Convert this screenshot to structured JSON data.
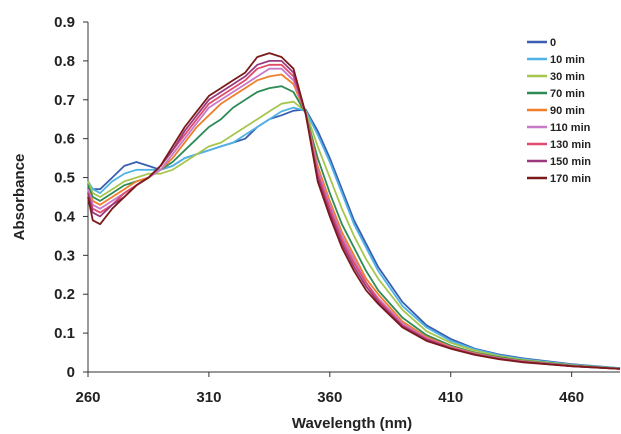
{
  "chart_data": {
    "type": "line",
    "title": "",
    "xlabel": "Wavelength (nm)",
    "ylabel": "Absorbance",
    "xlim": [
      260,
      480
    ],
    "ylim": [
      0,
      0.9
    ],
    "xticks": [
      260,
      310,
      360,
      410,
      460
    ],
    "yticks": [
      0,
      0.1,
      0.2,
      0.3,
      0.4,
      0.5,
      0.6,
      0.7,
      0.8,
      0.9
    ],
    "ytick_labels": [
      "0",
      "0.1",
      "0.2",
      "0.3",
      "0.4",
      "0.5",
      "0.6",
      "0.7",
      "0.8",
      "0.9"
    ],
    "grid": false,
    "legend_position": "top-right",
    "x": [
      260,
      262,
      265,
      270,
      275,
      280,
      285,
      290,
      295,
      300,
      305,
      310,
      315,
      320,
      325,
      330,
      335,
      340,
      345,
      350,
      355,
      360,
      365,
      370,
      375,
      380,
      390,
      400,
      410,
      420,
      430,
      440,
      460,
      480
    ],
    "series": [
      {
        "name": "0",
        "color": "#3a5fb0",
        "values": [
          0.49,
          0.47,
          0.47,
          0.5,
          0.53,
          0.54,
          0.53,
          0.52,
          0.53,
          0.55,
          0.56,
          0.57,
          0.58,
          0.59,
          0.6,
          0.63,
          0.65,
          0.66,
          0.672,
          0.675,
          0.62,
          0.55,
          0.47,
          0.39,
          0.33,
          0.27,
          0.18,
          0.12,
          0.085,
          0.06,
          0.045,
          0.035,
          0.02,
          0.01
        ]
      },
      {
        "name": "10 min",
        "color": "#4fb3e6",
        "values": [
          0.49,
          0.47,
          0.46,
          0.49,
          0.51,
          0.52,
          0.52,
          0.52,
          0.53,
          0.55,
          0.56,
          0.57,
          0.58,
          0.59,
          0.61,
          0.63,
          0.65,
          0.67,
          0.68,
          0.672,
          0.61,
          0.54,
          0.46,
          0.38,
          0.32,
          0.26,
          0.17,
          0.115,
          0.08,
          0.058,
          0.043,
          0.033,
          0.019,
          0.01
        ]
      },
      {
        "name": "30 min",
        "color": "#a6c64e",
        "values": [
          0.49,
          0.46,
          0.45,
          0.47,
          0.49,
          0.5,
          0.51,
          0.51,
          0.52,
          0.54,
          0.56,
          0.58,
          0.59,
          0.61,
          0.63,
          0.65,
          0.67,
          0.69,
          0.695,
          0.67,
          0.58,
          0.5,
          0.42,
          0.35,
          0.29,
          0.24,
          0.16,
          0.105,
          0.075,
          0.055,
          0.041,
          0.031,
          0.018,
          0.009
        ]
      },
      {
        "name": "70 min",
        "color": "#2e8b57",
        "values": [
          0.48,
          0.45,
          0.44,
          0.46,
          0.48,
          0.49,
          0.5,
          0.52,
          0.54,
          0.57,
          0.6,
          0.63,
          0.65,
          0.68,
          0.7,
          0.72,
          0.73,
          0.735,
          0.72,
          0.665,
          0.55,
          0.46,
          0.38,
          0.32,
          0.26,
          0.21,
          0.14,
          0.095,
          0.068,
          0.05,
          0.038,
          0.029,
          0.017,
          0.009
        ]
      },
      {
        "name": "90 min",
        "color": "#f07f2a",
        "values": [
          0.47,
          0.44,
          0.43,
          0.45,
          0.47,
          0.49,
          0.5,
          0.52,
          0.55,
          0.59,
          0.63,
          0.66,
          0.69,
          0.71,
          0.73,
          0.75,
          0.76,
          0.765,
          0.74,
          0.665,
          0.53,
          0.44,
          0.36,
          0.3,
          0.24,
          0.2,
          0.13,
          0.09,
          0.065,
          0.048,
          0.036,
          0.028,
          0.016,
          0.008
        ]
      },
      {
        "name": "110 min",
        "color": "#c879c8",
        "values": [
          0.47,
          0.43,
          0.42,
          0.44,
          0.46,
          0.48,
          0.5,
          0.52,
          0.56,
          0.6,
          0.64,
          0.68,
          0.7,
          0.72,
          0.74,
          0.76,
          0.78,
          0.78,
          0.75,
          0.665,
          0.52,
          0.43,
          0.35,
          0.29,
          0.23,
          0.19,
          0.125,
          0.087,
          0.063,
          0.047,
          0.035,
          0.027,
          0.016,
          0.008
        ]
      },
      {
        "name": "130 min",
        "color": "#e04a6e",
        "values": [
          0.46,
          0.42,
          0.41,
          0.43,
          0.46,
          0.48,
          0.5,
          0.53,
          0.57,
          0.61,
          0.65,
          0.69,
          0.71,
          0.73,
          0.75,
          0.78,
          0.79,
          0.79,
          0.76,
          0.665,
          0.51,
          0.42,
          0.34,
          0.28,
          0.23,
          0.185,
          0.12,
          0.085,
          0.062,
          0.046,
          0.034,
          0.026,
          0.015,
          0.008
        ]
      },
      {
        "name": "150 min",
        "color": "#9a3a7e",
        "values": [
          0.46,
          0.41,
          0.4,
          0.43,
          0.45,
          0.48,
          0.5,
          0.53,
          0.57,
          0.62,
          0.66,
          0.7,
          0.72,
          0.74,
          0.76,
          0.79,
          0.8,
          0.8,
          0.77,
          0.665,
          0.5,
          0.41,
          0.33,
          0.27,
          0.22,
          0.18,
          0.118,
          0.083,
          0.061,
          0.045,
          0.034,
          0.026,
          0.015,
          0.008
        ]
      },
      {
        "name": "170 min",
        "color": "#7b1a1a",
        "values": [
          0.45,
          0.39,
          0.38,
          0.42,
          0.45,
          0.48,
          0.5,
          0.53,
          0.58,
          0.63,
          0.67,
          0.71,
          0.73,
          0.75,
          0.77,
          0.81,
          0.82,
          0.81,
          0.78,
          0.665,
          0.49,
          0.4,
          0.32,
          0.26,
          0.21,
          0.175,
          0.115,
          0.08,
          0.06,
          0.044,
          0.033,
          0.025,
          0.015,
          0.008
        ]
      }
    ]
  }
}
